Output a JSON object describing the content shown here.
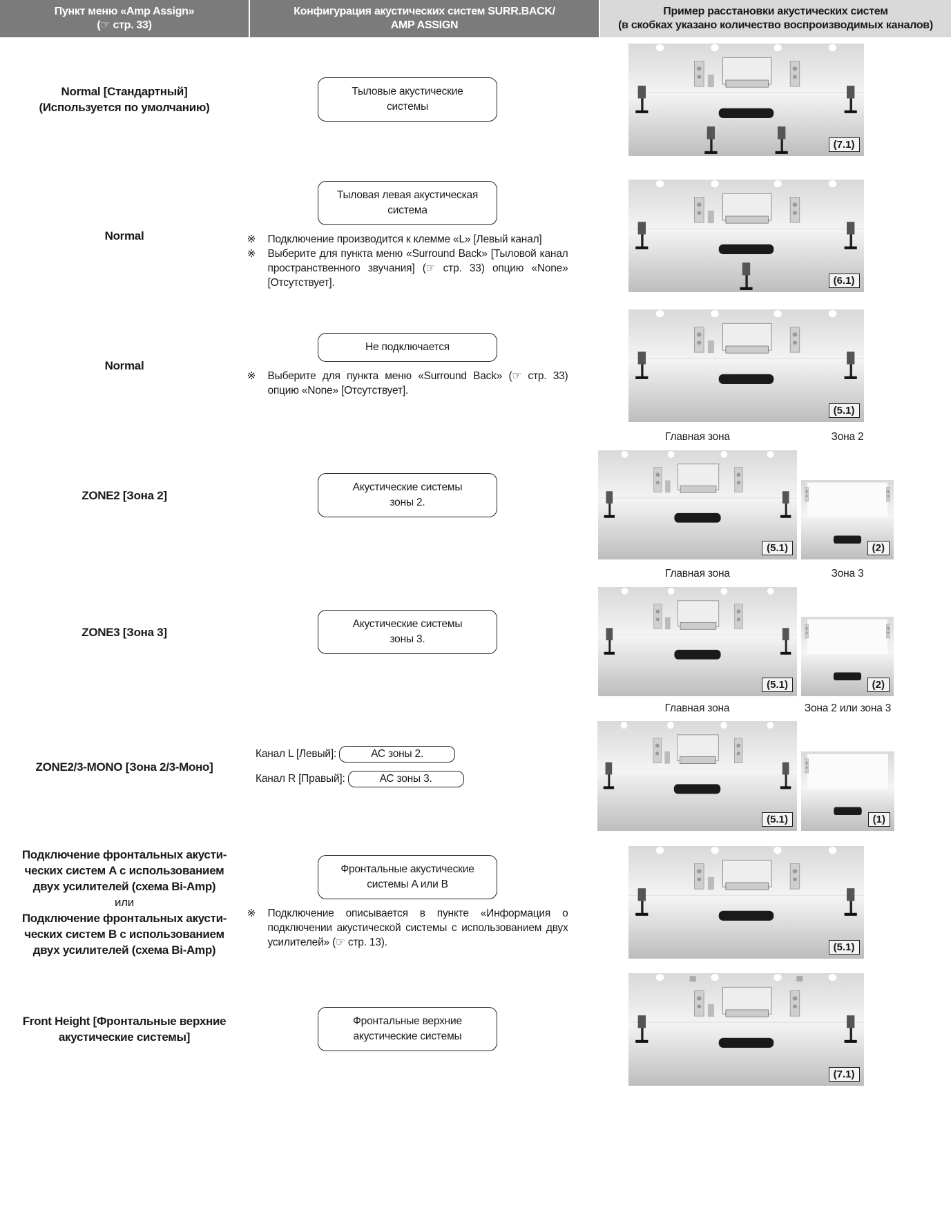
{
  "header": {
    "col1": [
      "Пункт меню «Amp Assign»",
      "(☞ стр. 33)"
    ],
    "col2": [
      "Конфигурация акустических систем SURR.BACK/",
      "AMP ASSIGN"
    ],
    "col3": [
      "Пример расстановки акустических систем",
      "(в скобках указано количество воспроизводимых каналов)"
    ]
  },
  "note_mark": "※",
  "rows": [
    {
      "item": [
        "Normal [Стандартный]",
        "(Используется по умолчанию)"
      ],
      "box": [
        "Тыловые акустические",
        "системы"
      ],
      "images": [
        {
          "channels": "(7.1)"
        }
      ]
    },
    {
      "item": [
        "Normal"
      ],
      "box": [
        "Тыловая левая акустическая",
        "система"
      ],
      "notes": [
        "Подключение производится к клемме «L» [Левый канал]",
        "Выберите для пункта меню «Surround Back» [Тыловой канал пространственного звучания] (☞ стр. 33) опцию «None» [Отсутствует]."
      ],
      "images": [
        {
          "channels": "(6.1)"
        }
      ]
    },
    {
      "item": [
        "Normal"
      ],
      "box": [
        "Не подключается"
      ],
      "notes": [
        "Выберите для пункта меню «Surround Back» (☞ стр. 33) опцию «None» [Отсутствует]."
      ],
      "images": [
        {
          "channels": "(5.1)"
        }
      ]
    },
    {
      "item": [
        "ZONE2 [Зона 2]"
      ],
      "box": [
        "Акустические системы",
        "зоны 2."
      ],
      "images": [
        {
          "label": "Главная зона",
          "channels": "(5.1)"
        },
        {
          "label": "Зона 2",
          "channels": "(2)"
        }
      ]
    },
    {
      "item": [
        "ZONE3 [Зона 3]"
      ],
      "box": [
        "Акустические системы",
        "зоны 3."
      ],
      "images": [
        {
          "label": "Главная зона",
          "channels": "(5.1)"
        },
        {
          "label": "Зона 3",
          "channels": "(2)"
        }
      ]
    },
    {
      "item": [
        "ZONE2/3-MONO [Зона 2/3-Моно]"
      ],
      "pairs": [
        {
          "label": "Канал L [Левый]:",
          "box": "АС зоны 2."
        },
        {
          "label": "Канал R [Правый]:",
          "box": "АС зоны 3."
        }
      ],
      "images": [
        {
          "label": "Главная зона",
          "channels": "(5.1)"
        },
        {
          "label": "Зона 2 или зона 3",
          "channels": "(1)"
        }
      ]
    },
    {
      "item": [
        "Подключение фронтальных акусти-",
        "ческих систем A с использованием",
        "двух усилителей (схема Bi-Amp)",
        "или",
        "Подключение фронтальных акусти-",
        "ческих систем B с использованием",
        "двух усилителей (схема Bi-Amp)"
      ],
      "box": [
        "Фронтальные акустические",
        "системы A или B"
      ],
      "notes": [
        "Подключение описывается в пункте «Информация о подключении акустической системы с использованием двух усилителей» (☞ стр. 13)."
      ],
      "images": [
        {
          "channels": "(5.1)"
        }
      ]
    },
    {
      "item": [
        "Front Height [Фронтальные верхние",
        "акустические системы]"
      ],
      "box": [
        "Фронтальные верхние",
        "акустические системы"
      ],
      "images": [
        {
          "channels": "(7.1)"
        }
      ]
    }
  ]
}
